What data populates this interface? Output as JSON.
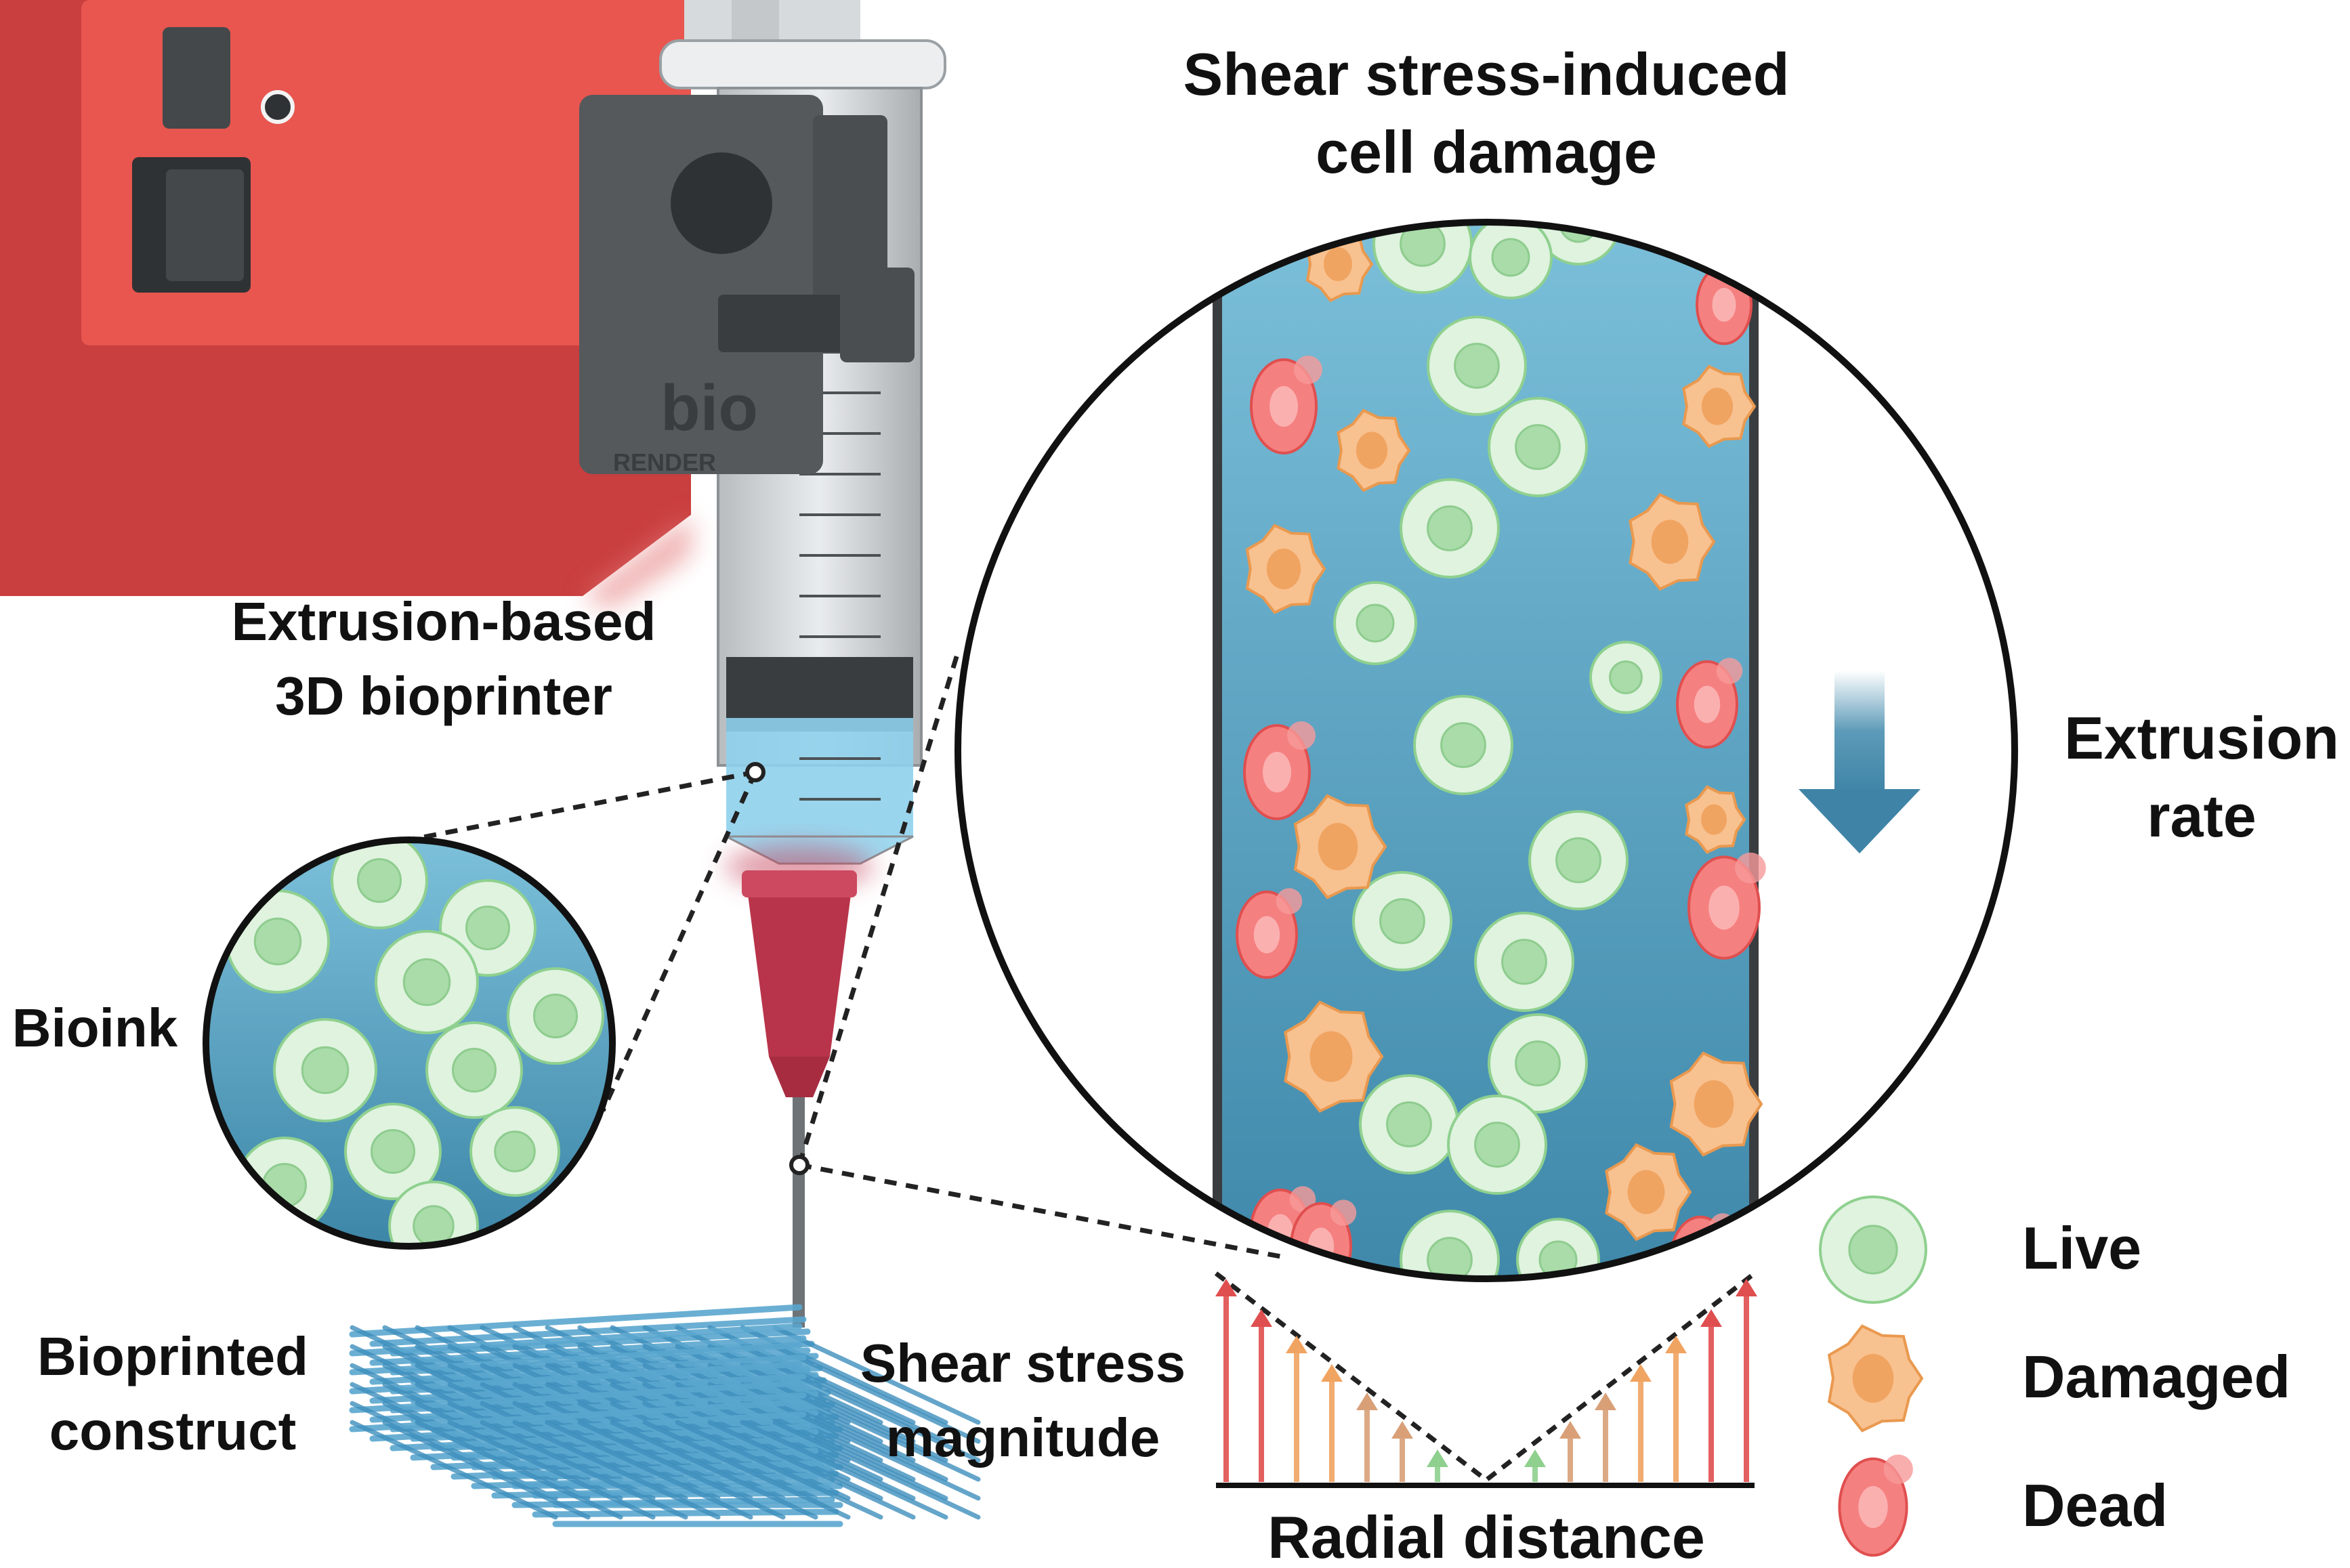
{
  "labels": {
    "printer_line1": "Extrusion-based",
    "printer_line2": "3D bioprinter",
    "bioink": "Bioink",
    "construct_line1": "Bioprinted",
    "construct_line2": "construct",
    "shear_title_line1": "Shear stress-induced",
    "shear_title_line2": "cell damage",
    "extrusion_line1": "Extrusion",
    "extrusion_line2": "rate",
    "magnitude_line1": "Shear stress",
    "magnitude_line2": "magnitude",
    "radial": "Radial distance",
    "brand_main": "bio",
    "brand_sub": "RENDER"
  },
  "legend": [
    {
      "label": "Live",
      "state": "live"
    },
    {
      "label": "Damaged",
      "state": "damaged"
    },
    {
      "label": "Dead",
      "state": "dead"
    }
  ],
  "colors": {
    "printer": "#d94a4a",
    "printer_panel": "#e8564f",
    "clamp": "#55595c",
    "needle_hub": "#b8344a",
    "bioink_fluid": "#4f9cbf",
    "live": "#c9eccb",
    "damaged": "#f3a76c",
    "dead": "#f06a6a",
    "arrow": "#4a8fb0",
    "construct": "#5aa7cf"
  },
  "shear_arrows_magnitude": [
    1.0,
    0.85,
    0.72,
    0.58,
    0.44,
    0.3,
    0.16,
    0.16,
    0.3,
    0.44,
    0.58,
    0.72,
    0.85,
    1.0
  ]
}
